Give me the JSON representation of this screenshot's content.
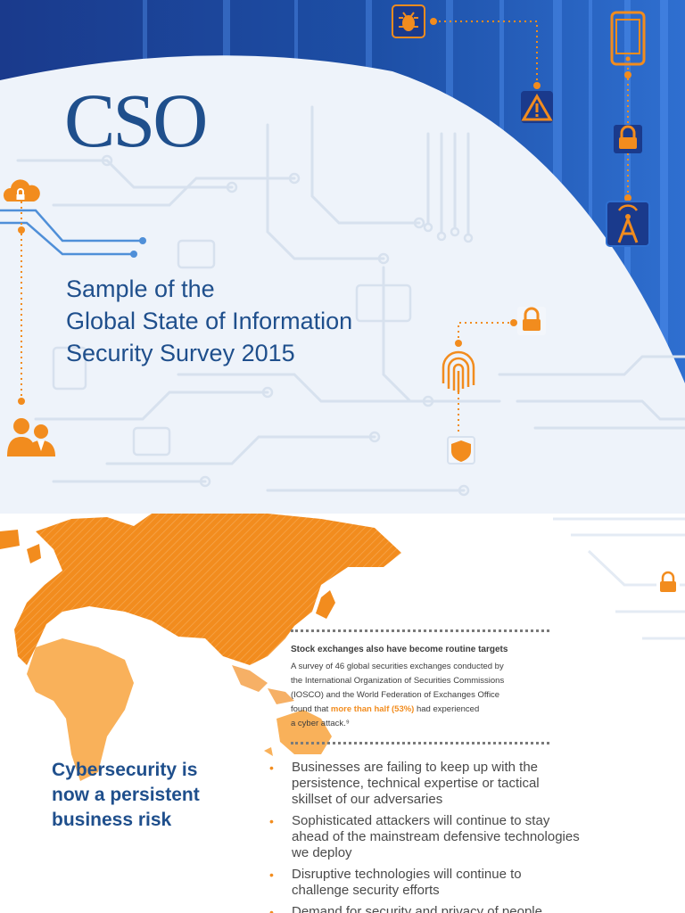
{
  "cover": {
    "logo": "CSO",
    "title_lines": [
      "Sample of the",
      "Global State of Information",
      "Security Survey 2015"
    ]
  },
  "icons": [
    "bug-icon",
    "warning-icon",
    "smartphone-icon",
    "lock-icon",
    "antenna-icon",
    "cloud-lock-icon",
    "fingerprint-icon",
    "shield-icon",
    "users-icon",
    "padlock-icon",
    "world-map"
  ],
  "slide": {
    "callout": {
      "title": "Stock exchanges also have become routine targets",
      "body_lines": [
        "A survey of 46 global securities exchanges conducted by",
        "the International Organization of Securities Commissions",
        "(IOSCO) and the World Federation of Exchanges Office"
      ],
      "prefix": "found that ",
      "highlight": "more than half (53%)",
      "suffix": " had experienced",
      "last_line": "a cyber attack.⁹"
    },
    "heading_lines": [
      "Cybersecurity is",
      "now a persistent",
      "business risk"
    ],
    "bullets": [
      "Businesses are failing to keep up with the persistence, technical expertise or tactical skillset of our adversaries",
      "Sophisticated attackers will continue to stay ahead of the mainstream defensive technologies we deploy",
      "Disruptive technologies will continue to challenge security efforts",
      "Demand for security and privacy of people"
    ],
    "bullet_marker": "•"
  },
  "colors": {
    "brand_blue": "#1f4f8c",
    "accent_orange": "#f28c1e",
    "circuit_light": "#dde6f1",
    "deep_blue": "#1a3a8c"
  }
}
